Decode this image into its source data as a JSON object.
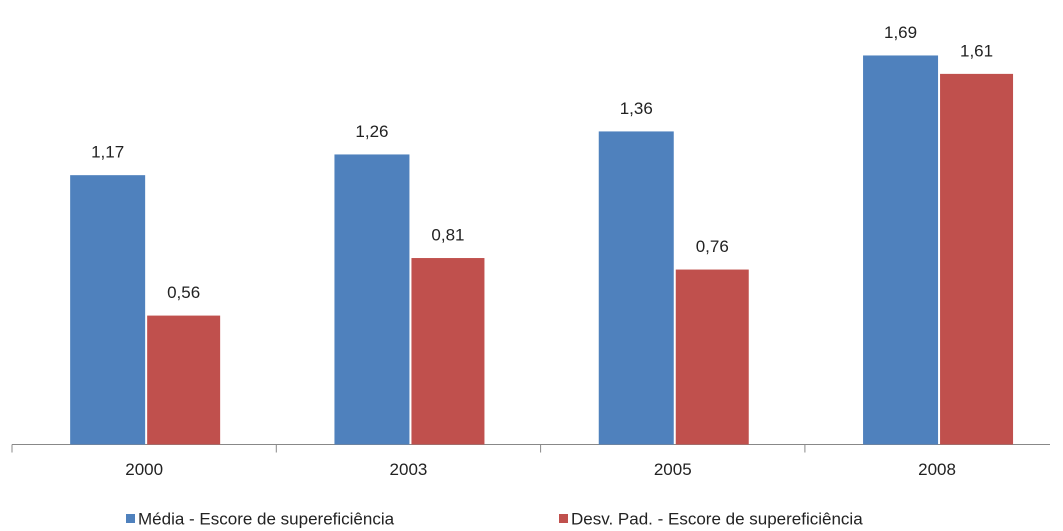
{
  "chart_data": {
    "type": "bar",
    "categories": [
      "2000",
      "2003",
      "2005",
      "2008"
    ],
    "series": [
      {
        "name": "Média - Escore de supereficiência",
        "color": "#4f81bd",
        "values": [
          1.17,
          1.26,
          1.36,
          1.69
        ],
        "value_labels": [
          "1,17",
          "1,26",
          "1,36",
          "1,69"
        ]
      },
      {
        "name": "Desv. Pad. - Escore de supereficiência",
        "color": "#c0504d",
        "values": [
          0.56,
          0.81,
          0.76,
          1.61
        ],
        "value_labels": [
          "0,56",
          "0,81",
          "0,76",
          "1,61"
        ]
      }
    ],
    "legend": "bottom"
  }
}
